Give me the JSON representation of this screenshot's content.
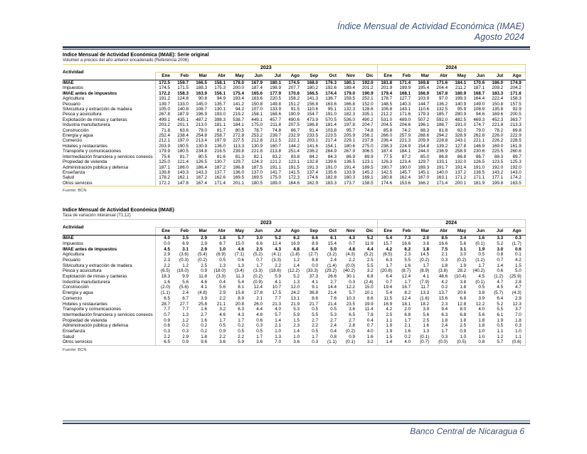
{
  "header": {
    "title": "Índice Mensual de Actividad Económica (IMAE)",
    "period": "Agosto 2024"
  },
  "footer": {
    "text": "Banco Central de Nicaragua 6"
  },
  "months_2023": [
    "Ene",
    "Feb",
    "Mar",
    "Abr",
    "May",
    "Jun",
    "Jul",
    "Ago",
    "Sep",
    "Oct",
    "Nov",
    "Dic"
  ],
  "months_2024": [
    "Ene",
    "Feb",
    "Mar",
    "Abr",
    "May",
    "Jun",
    "Jul",
    "Ago"
  ],
  "table1": {
    "title": "Indice Mensual de Actividad Económica (IMAE): Serie original",
    "subtitle": "Volumen a precios del año anterior encadenado (Referencia 2006)",
    "col_activity": "Actividad",
    "year1": "2023",
    "year2": "2024",
    "fuente": "Fuente: BCN",
    "rows": [
      {
        "label": "IMAE",
        "bold": true,
        "values": [
          "172.5",
          "159.7",
          "166.5",
          "158.1",
          "178.0",
          "167.9",
          "180.1",
          "174.5",
          "168.0",
          "176.3",
          "180.1",
          "192.0",
          "181.8",
          "171.4",
          "169.8",
          "171.6",
          "184.1",
          "170.6",
          "186.0",
          "174.9"
        ]
      },
      {
        "label": "Impuestos",
        "bold": false,
        "values": [
          "174.5",
          "171.5",
          "188.3",
          "175.3",
          "200.0",
          "187.4",
          "198.9",
          "207.7",
          "180.2",
          "192.6",
          "189.4",
          "201.2",
          "201.9",
          "199.9",
          "195.4",
          "204.4",
          "211.2",
          "187.1",
          "209.2",
          "204.2"
        ]
      },
      {
        "label": "IMAE antes de impuestos",
        "bold": true,
        "values": [
          "172.2",
          "158.3",
          "163.9",
          "156.1",
          "175.4",
          "165.6",
          "177.9",
          "170.6",
          "166.5",
          "174.4",
          "179.0",
          "190.9",
          "179.4",
          "168.1",
          "166.9",
          "167.8",
          "180.9",
          "168.7",
          "183.3",
          "171.6"
        ]
      },
      {
        "label": "Agricultura",
        "bold": false,
        "values": [
          "191.2",
          "124.8",
          "90.8",
          "94.9",
          "193.4",
          "163.6",
          "220.5",
          "158.2",
          "141.3",
          "136.7",
          "159.5",
          "252.1",
          "178.7",
          "127.7",
          "103.9",
          "97.0",
          "199.3",
          "164.4",
          "222.4",
          "158.3"
        ]
      },
      {
        "label": "Pecuario",
        "bold": false,
        "values": [
          "139.7",
          "133.0",
          "145.0",
          "135.7",
          "141.2",
          "150.8",
          "149.8",
          "151.2",
          "156.8",
          "163.6",
          "166.8",
          "152.0",
          "148.5",
          "140.3",
          "144.7",
          "136.2",
          "140.9",
          "149.0",
          "150.8",
          "157.5"
        ]
      },
      {
        "label": "Silvicultura y extracción de madera",
        "bold": false,
        "values": [
          "105.0",
          "140.8",
          "108.7",
          "130.1",
          "94.2",
          "107.0",
          "133.9",
          "91.5",
          "110.6",
          "95.1",
          "132.3",
          "128.6",
          "106.8",
          "143.1",
          "110.6",
          "132.5",
          "95.9",
          "108.9",
          "135.8",
          "92.9"
        ]
      },
      {
        "label": "Pesca y acuicultura",
        "bold": false,
        "values": [
          "267.8",
          "187.9",
          "196.9",
          "193.0",
          "219.2",
          "158.1",
          "168.6",
          "190.9",
          "154.7",
          "191.0",
          "182.3",
          "335.1",
          "212.2",
          "171.6",
          "179.3",
          "185.7",
          "280.9",
          "94.6",
          "169.6",
          "200.5"
        ]
      },
      {
        "label": "Explotación de minas y canteras",
        "bold": false,
        "values": [
          "499.1",
          "435.1",
          "487.2",
          "398.3",
          "538.7",
          "449.1",
          "457.7",
          "490.6",
          "473.9",
          "570.5",
          "536.0",
          "490.2",
          "531.0",
          "489.0",
          "507.2",
          "592.0",
          "482.5",
          "469.3",
          "452.3",
          "363.7"
        ]
      },
      {
        "label": "Industria manufacturera",
        "bold": false,
        "values": [
          "203.2",
          "201.1",
          "213.0",
          "181.1",
          "184.1",
          "175.0",
          "211.8",
          "207.5",
          "186.8",
          "181.4",
          "197.8",
          "204.7",
          "204.5",
          "204.6",
          "196.1",
          "188.7",
          "191.0",
          "174.7",
          "221.8",
          "213.3"
        ]
      },
      {
        "label": "Construcción",
        "bold": false,
        "values": [
          "71.8",
          "63.6",
          "79.0",
          "81.7",
          "80.5",
          "78.7",
          "74.8",
          "66.7",
          "91.4",
          "103.8",
          "95.7",
          "74.8",
          "85.8",
          "74.2",
          "88.3",
          "81.8",
          "82.0",
          "79.0",
          "78.2",
          "69.8"
        ]
      },
      {
        "label": "Energía y agua",
        "bold": false,
        "values": [
          "252.4",
          "238.4",
          "254.8",
          "258.7",
          "272.8",
          "253.2",
          "239.7",
          "232.9",
          "233.5",
          "223.5",
          "205.9",
          "256.1",
          "266.0",
          "257.9",
          "288.6",
          "294.2",
          "328.9",
          "262.8",
          "226.0",
          "222.9"
        ]
      },
      {
        "label": "Comercio",
        "bold": false,
        "values": [
          "212.1",
          "197.0",
          "213.4",
          "197.9",
          "227.5",
          "212.8",
          "212.5",
          "222.1",
          "203.1",
          "217.4",
          "229.1",
          "237.8",
          "236.4",
          "221.3",
          "209.9",
          "228.8",
          "243.1",
          "221.1",
          "226.2",
          "228.5"
        ]
      },
      {
        "label": "Hoteles y restaurantes",
        "bold": false,
        "values": [
          "203.9",
          "190.5",
          "130.9",
          "136.0",
          "113.3",
          "130.9",
          "160.7",
          "144.2",
          "141.6",
          "154.1",
          "180.6",
          "275.0",
          "238.3",
          "224.9",
          "154.8",
          "139.2",
          "127.8",
          "146.9",
          "169.0",
          "161.9"
        ]
      },
      {
        "label": "Transporte y comunicaciones",
        "bold": false,
        "values": [
          "179.9",
          "180.5",
          "234.8",
          "216.5",
          "239.8",
          "221.8",
          "213.8",
          "251.4",
          "236.2",
          "264.9",
          "267.9",
          "306.5",
          "187.4",
          "184.1",
          "244.0",
          "236.9",
          "258.9",
          "230.6",
          "225.5",
          "260.6"
        ]
      },
      {
        "label": "Intermediación financiera y servicios conexos",
        "bold": false,
        "values": [
          "75.6",
          "81.7",
          "80.5",
          "81.6",
          "81.3",
          "82.1",
          "83.2",
          "83.8",
          "84.2",
          "84.3",
          "86.9",
          "89.9",
          "77.5",
          "87.2",
          "85.0",
          "86.8",
          "86.8",
          "86.7",
          "88.3",
          "89.7"
        ]
      },
      {
        "label": "Propiedad de vivienda",
        "bold": false,
        "values": [
          "125.0",
          "121.4",
          "126.5",
          "130.7",
          "129.7",
          "124.3",
          "121.2",
          "123.1",
          "132.8",
          "139.6",
          "136.5",
          "123.1",
          "126.3",
          "123.4",
          "129.7",
          "133.1",
          "132.0",
          "126.5",
          "123.5",
          "125.3"
        ]
      },
      {
        "label": "Administración pública y defensa",
        "bold": false,
        "values": [
          "187.1",
          "186.0",
          "186.4",
          "187.2",
          "186.8",
          "187.5",
          "191.1",
          "191.5",
          "191.3",
          "191.0",
          "191.4",
          "189.5",
          "190.7",
          "190.0",
          "189.3",
          "191.7",
          "191.4",
          "191.0",
          "192.0",
          "192.0"
        ]
      },
      {
        "label": "Enseñanza",
        "bold": false,
        "values": [
          "139.8",
          "143.3",
          "143.3",
          "137.7",
          "136.0",
          "137.0",
          "141.7",
          "141.5",
          "137.4",
          "135.6",
          "133.9",
          "145.2",
          "142.5",
          "145.7",
          "145.1",
          "140.0",
          "137.2",
          "138.5",
          "143.2",
          "143.0"
        ]
      },
      {
        "label": "Salud",
        "bold": false,
        "values": [
          "178.2",
          "162.1",
          "167.2",
          "162.6",
          "169.5",
          "169.5",
          "175.0",
          "172.3",
          "174.6",
          "182.8",
          "180.3",
          "169.1",
          "180.8",
          "162.4",
          "167.0",
          "163.1",
          "171.2",
          "171.1",
          "177.1",
          "174.2"
        ]
      },
      {
        "label": "Otros servicios",
        "bold": false,
        "values": [
          "172.2",
          "147.8",
          "167.4",
          "171.4",
          "201.1",
          "180.5",
          "189.0",
          "164.6",
          "162.9",
          "183.3",
          "173.7",
          "158.5",
          "174.6",
          "153.6",
          "166.2",
          "171.4",
          "200.1",
          "181.9",
          "199.8",
          "163.5"
        ]
      }
    ]
  },
  "table2": {
    "title": "Indice Mensual de Actividad Económica (IMAE)",
    "subtitle": "Tasa de variación interanual (T1,12)",
    "col_activity": "Actividad",
    "year1": "2023",
    "year2": "2024",
    "fuente": "Fuente: BCN",
    "rows": [
      {
        "label": "IMAE",
        "bold": true,
        "values": [
          "4.0",
          "3.5",
          "2.9",
          "1.8",
          "5.7",
          "3.0",
          "5.2",
          "6.2",
          "6.6",
          "6.1",
          "4.3",
          "5.2",
          "5.4",
          "7.3",
          "2.0",
          "8.5",
          "3.4",
          "1.6",
          "3.3",
          "0.3"
        ]
      },
      {
        "label": "Impuestos",
        "bold": false,
        "values": [
          "0.0",
          "6.9",
          "2.9",
          "8.7",
          "15.0",
          "6.6",
          "12.4",
          "16.9",
          "8.9",
          "15.4",
          "0.7",
          "11.9",
          "15.7",
          "16.6",
          "3.8",
          "16.6",
          "5.6",
          "(0.1)",
          "5.2",
          "(1.7)"
        ]
      },
      {
        "label": "IMAE antes de impuestos",
        "bold": true,
        "values": [
          "4.5",
          "3.1",
          "2.9",
          "1.0",
          "4.6",
          "2.5",
          "4.3",
          "4.8",
          "6.4",
          "5.0",
          "4.8",
          "4.4",
          "4.2",
          "6.2",
          "1.8",
          "7.5",
          "3.1",
          "1.9",
          "3.0",
          "0.6"
        ]
      },
      {
        "label": "Agricultura",
        "bold": false,
        "values": [
          "2.9",
          "(3.6)",
          "(5.4)",
          "(6.9)",
          "(7.1)",
          "(5.2)",
          "(4.1)",
          "(1.8)",
          "(2.7)",
          "(3.2)",
          "(4.3)",
          "(5.2)",
          "(6.5)",
          "2.3",
          "14.5",
          "2.1",
          "3.0",
          "0.5",
          "0.8",
          "0.1"
        ]
      },
      {
        "label": "Pecuario",
        "bold": false,
        "values": [
          "2.3",
          "(0.3)",
          "(0.2)",
          "0.5",
          "0.6",
          "0.7",
          "(3.3)",
          "1.2",
          "8.8",
          "2.4",
          "2.2",
          "2.5",
          "6.3",
          "5.5",
          "(0.2)",
          "0.3",
          "(0.2)",
          "(1.2)",
          "0.7",
          "4.2"
        ]
      },
      {
        "label": "Silvicultura y extracción de madera",
        "bold": false,
        "values": [
          "2.2",
          "1.2",
          "2.5",
          "1.3",
          "1.3",
          "1.7",
          "2.2",
          "1.4",
          "0.0",
          "(1.4)",
          "(0.0)",
          "5.5",
          "1.7",
          "1.6",
          "1.7",
          "1.8",
          "1.9",
          "1.7",
          "1.4",
          "1.5"
        ]
      },
      {
        "label": "Pesca y acuicultura",
        "bold": false,
        "values": [
          "(6.5)",
          "(19.0)",
          "0.9",
          "(18.0)",
          "(3.4)",
          "(3.3)",
          "(18.6)",
          "(12.2)",
          "(33.3)",
          "(29.2)",
          "(40.2)",
          "3.2",
          "(20.8)",
          "(8.7)",
          "(8.9)",
          "(3.8)",
          "28.2",
          "(40.2)",
          "0.6",
          "5.0"
        ]
      },
      {
        "label": "Explotación de minas y canteras",
        "bold": false,
        "values": [
          "18.3",
          "9.9",
          "11.8",
          "(3.3)",
          "11.3",
          "(0.2)",
          "5.9",
          "5.2",
          "37.3",
          "26.6",
          "30.1",
          "6.8",
          "6.4",
          "12.4",
          "4.1",
          "48.6",
          "(10.4)",
          "4.5",
          "(1.2)",
          "(25.9)"
        ]
      },
      {
        "label": "Industria manufacturera",
        "bold": false,
        "values": [
          "1.6",
          "5.6",
          "4.6",
          "0.4",
          "5.4",
          "(0.9)",
          "4.1",
          "1.3",
          "4.1",
          "2.7",
          "0.3",
          "(2.4)",
          "0.7",
          "1.7",
          "(7.9)",
          "4.2",
          "3.8",
          "(0.1)",
          "4.7",
          "2.8"
        ]
      },
      {
        "label": "Construcción",
        "bold": false,
        "values": [
          "(2.0)",
          "(5.6)",
          "4.1",
          "5.6",
          "8.1",
          "12.4",
          "10.7",
          "12.0",
          "9.1",
          "14.4",
          "12.2",
          "15.0",
          "19.4",
          "16.7",
          "11.7",
          "0.2",
          "1.8",
          "0.5",
          "4.5",
          "4.7"
        ]
      },
      {
        "label": "Energía y agua",
        "bold": false,
        "values": [
          "(1.1)",
          "2.4",
          "(4.8)",
          "2.9",
          "15.8",
          "27.8",
          "17.5",
          "24.2",
          "36.8",
          "21.4",
          "5.7",
          "10.1",
          "5.4",
          "8.2",
          "13.3",
          "13.7",
          "20.6",
          "3.8",
          "(5.7)",
          "(4.3)"
        ]
      },
      {
        "label": "Comercio",
        "bold": false,
        "values": [
          "6.5",
          "6.7",
          "3.9",
          "2.2",
          "8.9",
          "2.1",
          "7.7",
          "13.1",
          "8.6",
          "7.6",
          "10.3",
          "8.6",
          "11.5",
          "12.4",
          "(1.6)",
          "15.6",
          "6.8",
          "3.9",
          "6.4",
          "2.9"
        ]
      },
      {
        "label": "Hoteles y restaurantes",
        "bold": false,
        "values": [
          "28.7",
          "27.7",
          "25.8",
          "21.1",
          "20.8",
          "26.0",
          "21.3",
          "21.9",
          "21.7",
          "21.4",
          "23.5",
          "19.9",
          "16.9",
          "18.1",
          "18.2",
          "2.3",
          "12.8",
          "12.2",
          "5.2",
          "12.3"
        ]
      },
      {
        "label": "Transporte y comunicaciones",
        "bold": false,
        "values": [
          "7.7",
          "7.7",
          "1.6",
          "3.2",
          "6.3",
          "4.4",
          "4.0",
          "5.3",
          "0.5",
          "0.5",
          "3.6",
          "11.4",
          "4.2",
          "2.0",
          "3.9",
          "9.4",
          "8.0",
          "4.0",
          "5.5",
          "3.7"
        ]
      },
      {
        "label": "Intermediación financiera y servicios conexos",
        "bold": false,
        "values": [
          "0.7",
          "1.3",
          "2.7",
          "4.6",
          "4.3",
          "4.8",
          "5.7",
          "5.9",
          "5.5",
          "5.3",
          "6.5",
          "7.8",
          "2.5",
          "6.8",
          "5.6",
          "6.3",
          "6.8",
          "5.6",
          "6.1",
          "7.0"
        ]
      },
      {
        "label": "Propiedad de vivienda",
        "bold": false,
        "values": [
          "0.9",
          "1.2",
          "1.6",
          "1.7",
          "1.7",
          "0.6",
          "1.4",
          "1.5",
          "2.7",
          "2.7",
          "2.7",
          "0.4",
          "1.1",
          "1.7",
          "2.5",
          "1.8",
          "1.8",
          "1.8",
          "1.9",
          "1.8"
        ]
      },
      {
        "label": "Administración pública y defensa",
        "bold": false,
        "values": [
          "0.6",
          "0.2",
          "0.2",
          "0.5",
          "0.2",
          "0.3",
          "2.1",
          "2.3",
          "2.2",
          "2.4",
          "2.8",
          "0.7",
          "1.9",
          "2.1",
          "1.6",
          "2.4",
          "2.5",
          "1.8",
          "0.5",
          "0.3"
        ]
      },
      {
        "label": "Enseñanza",
        "bold": false,
        "values": [
          "0.3",
          "0.3",
          "0.2",
          "0.9",
          "0.5",
          "0.5",
          "1.0",
          "1.4",
          "0.5",
          "0.4",
          "(0.2)",
          "4.0",
          "1.9",
          "1.6",
          "1.3",
          "1.7",
          "0.9",
          "1.0",
          "1.1",
          "1.0"
        ]
      },
      {
        "label": "Salud",
        "bold": false,
        "values": [
          "2.2",
          "2.9",
          "1.8",
          "2.2",
          "2.2",
          "1.7",
          "1.3",
          "1.0",
          "1.7",
          "0.8",
          "0.9",
          "1.6",
          "1.5",
          "0.2",
          "(0.1)",
          "0.3",
          "1.0",
          "1.0",
          "1.2",
          "1.1"
        ]
      },
      {
        "label": "Otros servicios",
        "bold": false,
        "values": [
          "6.5",
          "0.9",
          "9.6",
          "3.6",
          "5.9",
          "3.6",
          "7.0",
          "3.6",
          "0.3",
          "(1.1)",
          "(0.1)",
          "3.2",
          "1.4",
          "4.0",
          "(0.7)",
          "(0.0)",
          "(0.5)",
          "0.8",
          "5.7",
          "(0.6)"
        ]
      }
    ]
  }
}
